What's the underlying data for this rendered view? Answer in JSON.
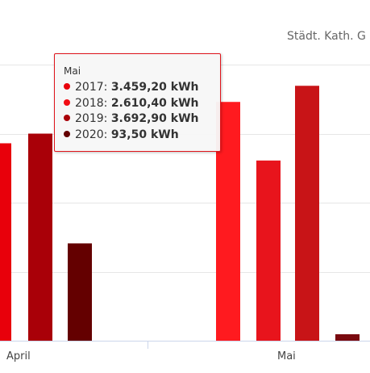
{
  "chart_data": {
    "type": "bar",
    "title": "Städt. Kath. G",
    "categories": [
      "April",
      "Mai"
    ],
    "series": [
      {
        "name": "2017",
        "color": "#e8000b",
        "values": [
          2860,
          3459.2
        ]
      },
      {
        "name": "2018",
        "color": "#f20d14",
        "values": [
          null,
          2610.4
        ]
      },
      {
        "name": "2019",
        "color": "#a90008",
        "values": [
          3000,
          3692.9
        ]
      },
      {
        "name": "2020",
        "color": "#640000",
        "values": [
          1410,
          93.5
        ]
      }
    ],
    "ylim": [
      0,
      4000
    ],
    "grid": true,
    "legend": "none"
  },
  "tooltip": {
    "title": "Mai",
    "rows": [
      {
        "year": "2017",
        "value": "3.459,20 kWh",
        "color": "#e8000b"
      },
      {
        "year": "2018",
        "value": "2.610,40 kWh",
        "color": "#f20d14"
      },
      {
        "year": "2019",
        "value": "3.692,90 kWh",
        "color": "#a90008"
      },
      {
        "year": "2020",
        "value": "93,50 kWh",
        "color": "#640000"
      }
    ]
  }
}
